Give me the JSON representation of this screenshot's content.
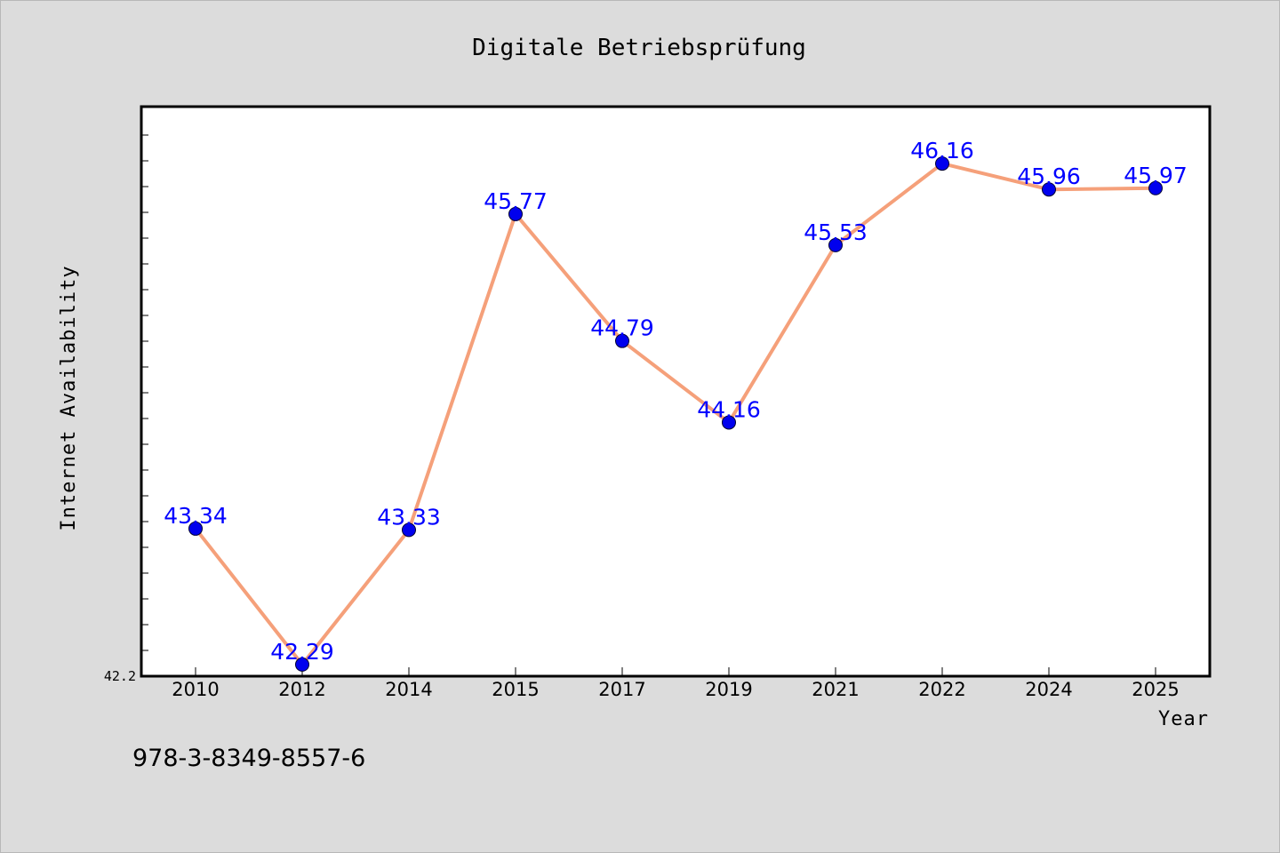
{
  "chart_data": {
    "type": "line",
    "title": "Digitale Betriebsprüfung",
    "xlabel": "Year",
    "ylabel": "Internet Availability",
    "categories": [
      "2010",
      "2012",
      "2014",
      "2015",
      "2017",
      "2019",
      "2021",
      "2022",
      "2024",
      "2025"
    ],
    "series": [
      {
        "values": [
          43.34,
          42.29,
          43.33,
          45.77,
          44.79,
          44.16,
          45.53,
          46.16,
          45.96,
          45.97
        ],
        "line_color": "#f5a07a",
        "marker_color": "#0000ee",
        "label_color": "#0000ff"
      }
    ],
    "ylim": [
      42.2,
      46.6
    ],
    "yticks_labeled": [
      "42.2"
    ],
    "grid": false,
    "legend": "none"
  },
  "footer": {
    "isbn": "978-3-8349-8557-6"
  },
  "colors": {
    "background": "#dcdcdc",
    "plot_background": "#ffffff",
    "axis": "#000000"
  }
}
